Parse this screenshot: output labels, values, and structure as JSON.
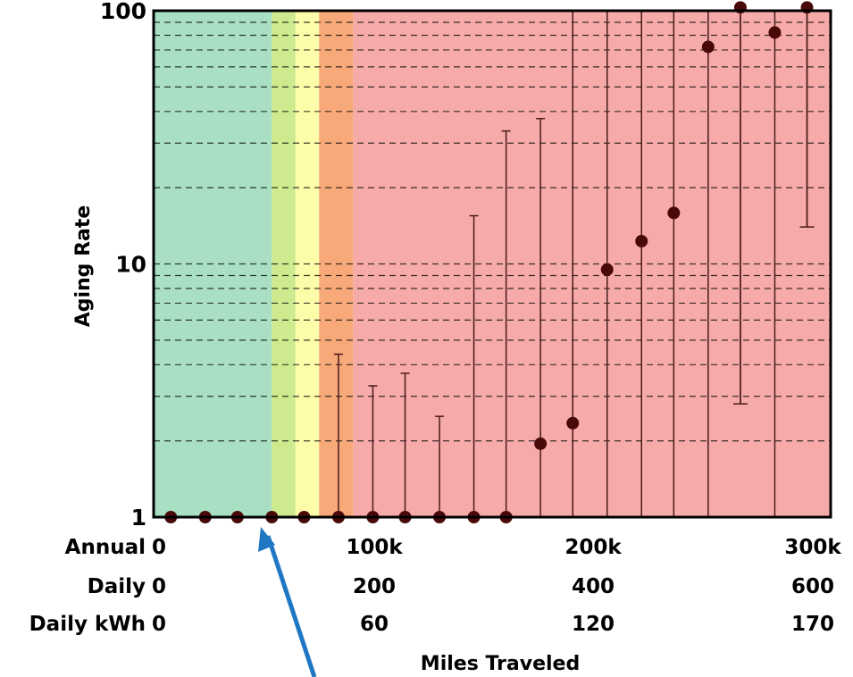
{
  "chart_data": {
    "type": "scatter",
    "title": "",
    "xlabel": "Miles Traveled",
    "ylabel": "Aging Rate",
    "yscale": "log",
    "ylim": [
      1,
      100
    ],
    "xlim": [
      0,
      315000
    ],
    "grid": "dashed horizontal minor lines",
    "y_ticks": [
      "1",
      "10",
      "100"
    ],
    "x_axis_rows": [
      {
        "label": "Annual",
        "ticks": [
          "0",
          "100k",
          "200k",
          "300k"
        ]
      },
      {
        "label": "Daily",
        "ticks": [
          "0",
          "200",
          "400",
          "600"
        ]
      },
      {
        "label": "Daily kWh",
        "ticks": [
          "0",
          "60",
          "120",
          "170"
        ]
      }
    ],
    "bands": [
      {
        "from": 0,
        "to": 55000,
        "color": "#a9e0c4"
      },
      {
        "from": 55000,
        "to": 66000,
        "color": "#cdeb8e"
      },
      {
        "from": 66000,
        "to": 77000,
        "color": "#fdfca8"
      },
      {
        "from": 77000,
        "to": 93000,
        "color": "#f7a97a"
      },
      {
        "from": 93000,
        "to": 315000,
        "color": "#f7aaaa"
      }
    ],
    "series": [
      {
        "points": [
          {
            "x": 8000,
            "y": 1,
            "upper": null,
            "lower": null
          },
          {
            "x": 24000,
            "y": 1,
            "upper": null,
            "lower": null
          },
          {
            "x": 39000,
            "y": 1,
            "upper": null,
            "lower": null
          },
          {
            "x": 55000,
            "y": 1,
            "upper": null,
            "lower": null
          },
          {
            "x": 70000,
            "y": 1,
            "upper": null,
            "lower": null
          },
          {
            "x": 86000,
            "y": 1,
            "upper": 4.4,
            "lower": null
          },
          {
            "x": 102000,
            "y": 1,
            "upper": 3.3,
            "lower": null
          },
          {
            "x": 117000,
            "y": 1,
            "upper": 3.7,
            "lower": null
          },
          {
            "x": 133000,
            "y": 1,
            "upper": 2.5,
            "lower": null
          },
          {
            "x": 149000,
            "y": 1,
            "upper": 15.5,
            "lower": null
          },
          {
            "x": 164000,
            "y": 1,
            "upper": 33.5,
            "lower": null
          },
          {
            "x": 180000,
            "y": 1.95,
            "upper": 37.5,
            "lower": null
          },
          {
            "x": 195000,
            "y": 2.35,
            "upper": 100,
            "lower": null
          },
          {
            "x": 211000,
            "y": 9.5,
            "upper": 100,
            "lower": null
          },
          {
            "x": 227000,
            "y": 12.3,
            "upper": 100,
            "lower": null
          },
          {
            "x": 242000,
            "y": 15.9,
            "upper": 100,
            "lower": null
          },
          {
            "x": 258000,
            "y": 72,
            "upper": 100,
            "lower": null
          },
          {
            "x": 273000,
            "y": 103,
            "upper": 100,
            "lower": 2.8
          },
          {
            "x": 289000,
            "y": 82,
            "upper": 100,
            "lower": null
          },
          {
            "x": 304000,
            "y": 103,
            "upper": 100,
            "lower": 14
          }
        ]
      }
    ]
  },
  "colors": {
    "marker": "#4a0909",
    "errorbar": "#4a1a1a",
    "grid": "#000000",
    "arrow": "#1f77c4"
  },
  "annotation": {
    "arrow_icon": "arrow-up-left-icon"
  }
}
